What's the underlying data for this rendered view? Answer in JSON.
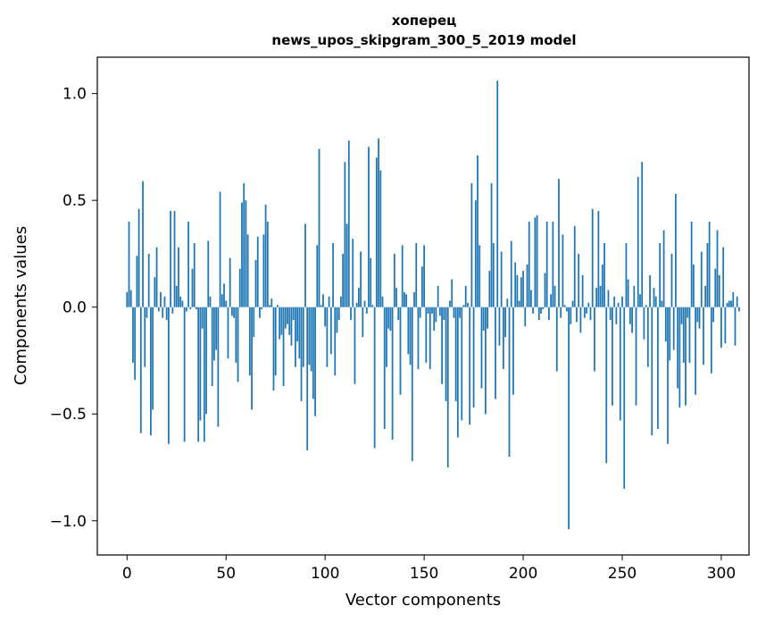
{
  "chart_data": {
    "type": "bar",
    "title_line1": "хоперец",
    "title_line2": "news_upos_skipgram_300_5_2019 model",
    "xlabel": "Vector components",
    "ylabel": "Components values",
    "xlim": [
      -15,
      314
    ],
    "ylim": [
      -1.16,
      1.17
    ],
    "xticks": [
      0,
      50,
      100,
      150,
      200,
      250,
      300
    ],
    "xtick_labels": [
      "0",
      "50",
      "100",
      "150",
      "200",
      "250",
      "300"
    ],
    "yticks": [
      -1.0,
      -0.5,
      0.0,
      0.5,
      1.0
    ],
    "ytick_labels": [
      "−1.0",
      "−0.5",
      "0.0",
      "0.5",
      "1.0"
    ],
    "grid": false,
    "bar_color": "#1f77b4",
    "values": [
      0.07,
      0.4,
      0.08,
      -0.26,
      -0.34,
      0.24,
      0.46,
      -0.59,
      0.59,
      -0.28,
      -0.05,
      0.25,
      -0.6,
      -0.48,
      0.14,
      0.28,
      -0.02,
      0.07,
      -0.05,
      0.05,
      -0.06,
      -0.64,
      0.45,
      -0.03,
      0.45,
      0.1,
      0.28,
      0.05,
      0.03,
      -0.63,
      -0.02,
      0.4,
      -0.01,
      0.18,
      0.3,
      -0.01,
      -0.63,
      -0.53,
      -0.1,
      -0.63,
      -0.5,
      0.31,
      0.05,
      -0.37,
      -0.25,
      -0.2,
      -0.56,
      0.54,
      0.06,
      0.11,
      0.03,
      -0.24,
      0.23,
      -0.04,
      -0.05,
      -0.26,
      -0.35,
      0.18,
      0.49,
      0.58,
      0.5,
      0.34,
      -0.32,
      -0.48,
      -0.14,
      0.22,
      0.33,
      -0.05,
      -0.01,
      0.34,
      0.48,
      0.4,
      0.01,
      0.04,
      -0.39,
      -0.32,
      0.01,
      -0.15,
      -0.13,
      -0.37,
      -0.1,
      -0.08,
      -0.13,
      -0.18,
      -0.06,
      -0.28,
      -0.16,
      -0.24,
      -0.44,
      -0.28,
      0.39,
      -0.67,
      -0.27,
      -0.3,
      -0.43,
      -0.51,
      0.29,
      0.74,
      0.01,
      0.06,
      -0.09,
      -0.28,
      0.05,
      -0.22,
      0.3,
      -0.32,
      -0.12,
      -0.06,
      0.05,
      0.25,
      0.68,
      0.39,
      0.78,
      -0.06,
      0.32,
      -0.36,
      0.02,
      0.09,
      0.26,
      -0.14,
      0.03,
      -0.03,
      0.75,
      0.23,
      0.01,
      -0.66,
      0.7,
      0.79,
      0.64,
      0.05,
      -0.57,
      -0.28,
      -0.1,
      -0.11,
      -0.62,
      0.25,
      0.09,
      -0.06,
      -0.41,
      0.29,
      0.07,
      0.06,
      -0.22,
      -0.27,
      -0.72,
      0.07,
      0.3,
      -0.29,
      -0.05,
      0.19,
      0.29,
      -0.26,
      -0.03,
      -0.29,
      -0.03,
      -0.11,
      -0.07,
      0.1,
      -0.04,
      -0.36,
      -0.06,
      -0.44,
      -0.75,
      0.03,
      0.13,
      -0.05,
      -0.44,
      -0.61,
      -0.05,
      -0.53,
      0.01,
      0.1,
      0.02,
      -0.55,
      0.58,
      -0.47,
      0.5,
      0.71,
      0.29,
      -0.38,
      -0.11,
      -0.5,
      -0.1,
      0.17,
      0.58,
      0.3,
      -0.43,
      1.06,
      -0.18,
      0.26,
      -0.29,
      -0.14,
      0.04,
      -0.7,
      0.31,
      -0.41,
      0.21,
      0.15,
      0.03,
      0.14,
      0.17,
      -0.09,
      0.2,
      0.4,
      0.08,
      -0.03,
      0.42,
      0.43,
      -0.06,
      -0.03,
      -0.01,
      0.16,
      0.4,
      -0.06,
      0.06,
      0.4,
      0.1,
      -0.3,
      0.6,
      -0.05,
      0.34,
      0.01,
      -0.02,
      -1.04,
      -0.08,
      0.03,
      0.38,
      -0.07,
      0.25,
      -0.12,
      0.15,
      -0.05,
      -0.03,
      0.02,
      -0.06,
      0.46,
      -0.3,
      0.09,
      0.45,
      0.1,
      0.2,
      0.3,
      -0.73,
      0.08,
      -0.06,
      -0.46,
      0.05,
      -0.08,
      0.02,
      -0.53,
      0.05,
      -0.85,
      0.3,
      0.13,
      -0.08,
      -0.12,
      0.1,
      -0.46,
      0.61,
      0.06,
      0.68,
      -0.15,
      0.01,
      -0.28,
      0.15,
      -0.6,
      0.09,
      0.05,
      -0.57,
      0.3,
      0.03,
      0.36,
      -0.16,
      -0.64,
      -0.25,
      0.25,
      -0.2,
      0.53,
      -0.38,
      -0.47,
      -0.08,
      -0.26,
      -0.46,
      -0.05,
      -0.26,
      0.4,
      0.2,
      -0.41,
      -0.07,
      -0.1,
      0.26,
      -0.27,
      0.1,
      0.3,
      0.4,
      -0.31,
      -0.07,
      0.18,
      0.36,
      0.15,
      -0.19,
      0.28,
      -0.17,
      0.02,
      0.03,
      0.03,
      0.07,
      -0.18,
      0.05,
      -0.02
    ]
  }
}
